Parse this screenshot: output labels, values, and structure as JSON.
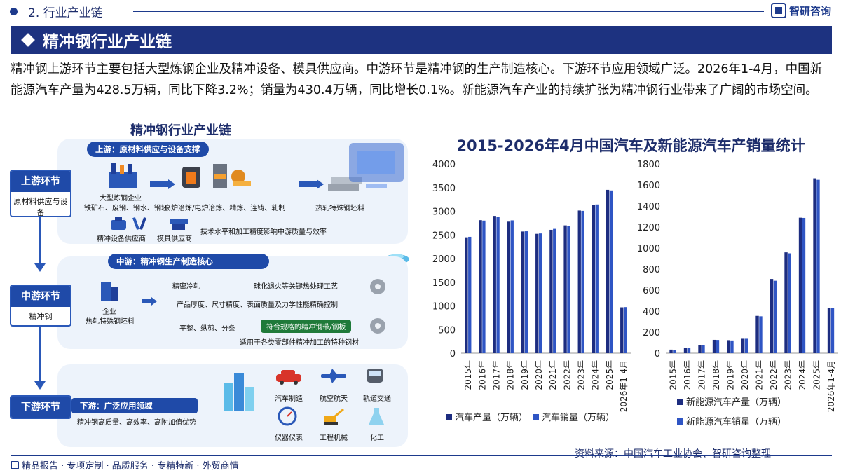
{
  "header": {
    "section_label": "2. 行业产业链",
    "brand": "智研咨询",
    "title": "精冲钢行业产业链"
  },
  "intro": "精冲钢上游环节主要包括大型炼钢企业及精冲设备、模具供应商。中游环节是精冲钢的生产制造核心。下游环节应用领域广泛。2026年1-4月，中国新能源汽车产量为428.5万辆，同比下降3.2%；销量为430.4万辆，同比增长0.1%。新能源汽车产业的持续扩张为精冲钢行业带来了广阔的市场空间。",
  "diagram": {
    "title": "精冲钢行业产业链",
    "upstream": {
      "stage_title": "上游环节",
      "stage_desc": "原材料供应与设备",
      "pill": "上游：原材料供应与设备支撑",
      "steel_enterprise": "大型炼钢企业",
      "raw_materials": "铁矿石、废钢、钢水、钢坯",
      "process": "高炉冶炼/电炉冶炼、精炼、连铸、轧制",
      "hot_rolled": "热轧特殊钢坯料",
      "equip_supplier": "精冲设备供应商",
      "mold_supplier": "模具供应商",
      "note": "技术水平和加工精度影响中游质量与效率"
    },
    "midstream": {
      "stage_title": "中游环节",
      "stage_desc": "精冲钢",
      "pill": "中游：精冲钢生产制造核心",
      "enterprise": "企业",
      "enterprise_desc": "热轧特殊钢坯料",
      "step1": "精密冷轧",
      "step2": "球化退火等关键热处理工艺",
      "step3": "产品厚度、尺寸精度、表面质量及力学性能精确控制",
      "step4": "平整、纵剪、分条",
      "product": "符合规格的精冲钢带/钢板",
      "product_desc": "适用于各类零部件精冲加工的特种钢材"
    },
    "downstream": {
      "stage_title": "下游环节",
      "pill": "下游：广泛应用领域",
      "desc": "精冲钢高质量、高效率、高附加值优势",
      "apps": [
        "汽车制造",
        "航空航天",
        "轨道交通",
        "仪器仪表",
        "工程机械",
        "化工"
      ]
    }
  },
  "chart_section_title": "2015-2026年4月中国汽车及新能源汽车产销量统计",
  "chart_data": [
    {
      "type": "bar",
      "categories": [
        "2015年",
        "2016年",
        "2017年",
        "2018年",
        "2019年",
        "2020年",
        "2021年",
        "2022年",
        "2023年",
        "2024年",
        "2025年",
        "2026年1-4月"
      ],
      "series": [
        {
          "name": "汽车产量（万辆）",
          "values": [
            2450,
            2812,
            2902,
            2781,
            2572,
            2523,
            2608,
            2702,
            3016,
            3128,
            3453,
            970
          ],
          "color": "#1d2d80"
        },
        {
          "name": "汽车销量（万辆）",
          "values": [
            2460,
            2803,
            2888,
            2808,
            2577,
            2531,
            2628,
            2686,
            3009,
            3144,
            3440,
            975
          ],
          "color": "#2f55c4"
        }
      ],
      "ylim": [
        0,
        4000
      ],
      "yticks": [
        0,
        500,
        1000,
        1500,
        2000,
        2500,
        3000,
        3500,
        4000
      ],
      "legend": "bottom"
    },
    {
      "type": "bar",
      "categories": [
        "2015年",
        "2016年",
        "2017年",
        "2018年",
        "2019年",
        "2020年",
        "2021年",
        "2022年",
        "2023年",
        "2024年",
        "2025年",
        "2026年1-4月"
      ],
      "series": [
        {
          "name": "新能源汽车产量（万辆）",
          "values": [
            34,
            52,
            79,
            127,
            124,
            137,
            355,
            706,
            959,
            1289,
            1663,
            429
          ],
          "color": "#1d2d80"
        },
        {
          "name": "新能源汽车销量（万辆）",
          "values": [
            33,
            51,
            78,
            126,
            121,
            137,
            351,
            689,
            950,
            1287,
            1649,
            430
          ],
          "color": "#2f55c4"
        }
      ],
      "ylim": [
        0,
        1800
      ],
      "yticks": [
        0,
        200,
        400,
        600,
        800,
        1000,
        1200,
        1400,
        1600,
        1800
      ],
      "legend": "bottom"
    }
  ],
  "source": "资料来源：中国汽车工业协会、智研咨询整理",
  "footer": "精品报告 · 专项定制 · 品质服务 · 专精特新 · 外贸商情"
}
